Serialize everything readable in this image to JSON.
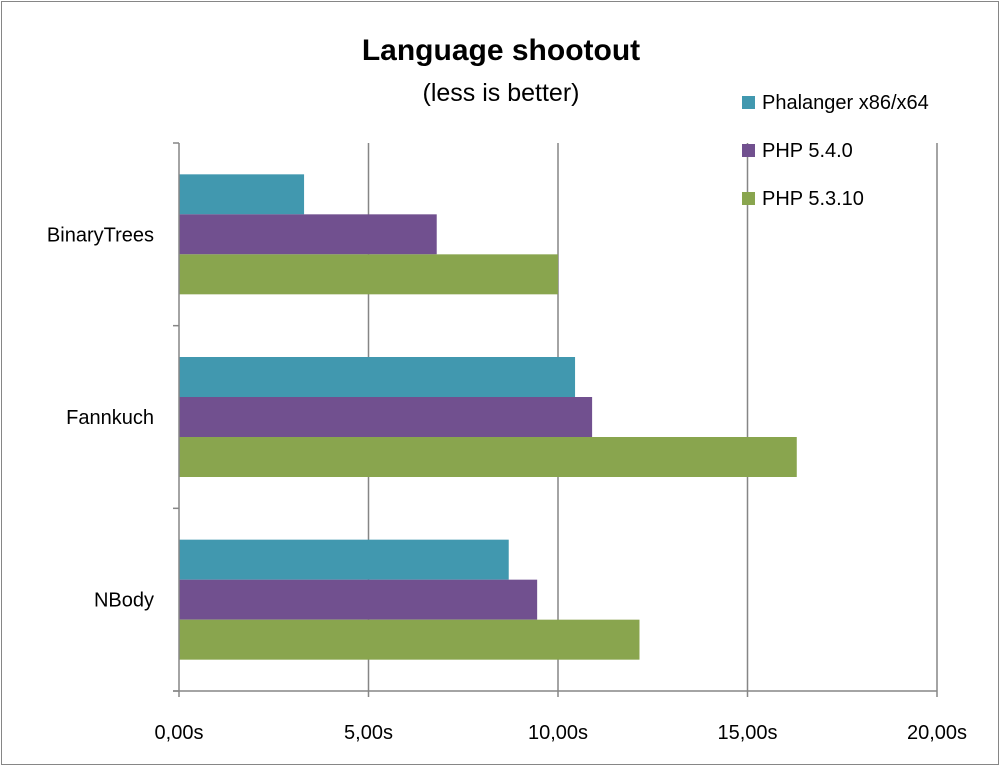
{
  "chart_data": {
    "type": "bar",
    "orientation": "horizontal",
    "title": "Language shootout",
    "subtitle": "(less is better)",
    "categories": [
      "BinaryTrees",
      "Fannkuch",
      "NBody"
    ],
    "series": [
      {
        "name": "Phalanger x86/x64",
        "color": "#4198AF",
        "values": [
          3.3,
          10.45,
          8.7
        ]
      },
      {
        "name": "PHP 5.4.0",
        "color": "#71508F",
        "values": [
          6.8,
          10.9,
          9.45
        ]
      },
      {
        "name": "PHP 5.3.10",
        "color": "#89A54E",
        "values": [
          10.0,
          16.3,
          12.15
        ]
      }
    ],
    "xlim": [
      0,
      20
    ],
    "x_ticks": [
      0,
      5,
      10,
      15,
      20
    ],
    "x_tick_labels": [
      "0,00s",
      "5,00s",
      "10,00s",
      "15,00s",
      "20,00s"
    ],
    "xlabel": "",
    "ylabel": "",
    "grid": "vertical major gridlines",
    "legend_position": "top-right"
  }
}
